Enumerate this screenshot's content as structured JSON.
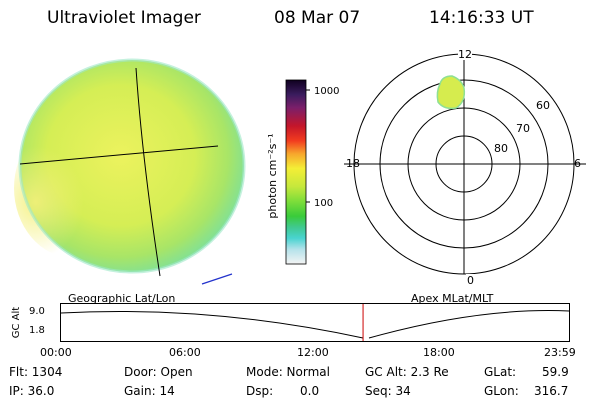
{
  "header": {
    "instrument": "Ultraviolet Imager",
    "date": "08 Mar 07",
    "time": "14:16:33 UT"
  },
  "colorbar": {
    "unit_label": "photon cm⁻²s⁻¹",
    "ticks": [
      "1000",
      "100"
    ],
    "scale": "log"
  },
  "polar_plot": {
    "mlt_labels": {
      "top": "12",
      "left": "18",
      "right": "6",
      "bottom": "0"
    },
    "mlat_labels": [
      "60",
      "70",
      "80"
    ]
  },
  "panel_labels": {
    "left": "Geographic Lat/Lon",
    "right": "Apex MLat/MLT"
  },
  "timeline": {
    "axis_label": "GC Alt",
    "y_ticks": [
      "9.0",
      "1.8"
    ],
    "x_ticks": [
      "00:00",
      "06:00",
      "12:00",
      "18:00",
      "23:59"
    ],
    "current_time_fraction": 0.5946
  },
  "status": {
    "flt": "Flt: 1304",
    "ip": "IP: 36.0",
    "door": "Door: Open",
    "gain": "Gain: 14",
    "mode": "Mode: Normal",
    "dsp": "Dsp:",
    "dsp_value": "0.0",
    "gc_alt": "GC Alt: 2.3 Re",
    "seq": "Seq: 34",
    "glat": "GLat:",
    "glat_value": "59.9",
    "glon": "GLon:",
    "glon_value": "316.7"
  },
  "colors": {
    "globe_center": "#d8ef5a",
    "globe_edge": "#7fe39a",
    "timeline_marker": "#cc0000"
  }
}
